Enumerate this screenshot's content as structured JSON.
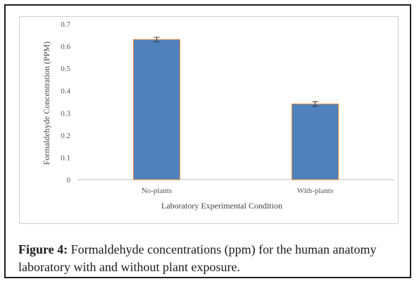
{
  "caption": {
    "label": "Figure 4:",
    "text": "Formaldehyde concentrations (ppm) for the human anatomy laboratory with and without plant exposure."
  },
  "colors": {
    "bar": "#4f81bd",
    "bar_border": "#e8883a",
    "error_bar": "#333333"
  },
  "chart_data": {
    "type": "bar",
    "categories": [
      "No-plants",
      "With-plants"
    ],
    "values": [
      0.63,
      0.34
    ],
    "errors": [
      0.01,
      0.01
    ],
    "title": "",
    "xlabel": "Laboratory  Experimental  Condition",
    "ylabel": "Formaldehyde  Concentration  (PPM)",
    "ylim": [
      0,
      0.7
    ],
    "yticks": [
      "0",
      "0.1",
      "0.2",
      "0.3",
      "0.4",
      "0.5",
      "0.6",
      "0.7"
    ],
    "grid": false,
    "legend": "none"
  }
}
